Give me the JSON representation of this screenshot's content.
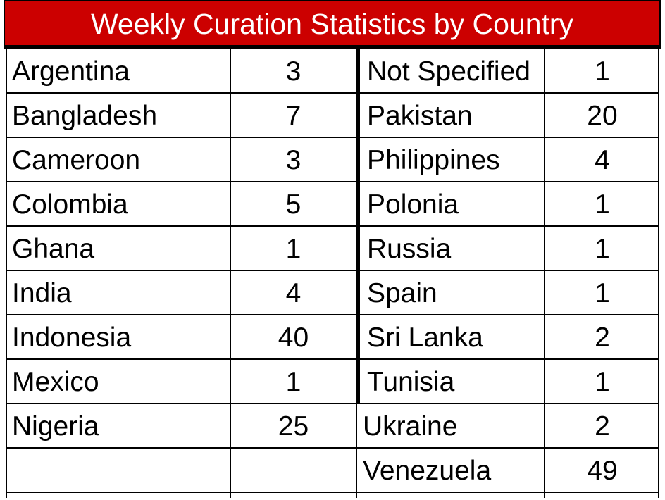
{
  "title": "Weekly Curation Statistics by Country",
  "colors": {
    "header_bg": "#cc0000",
    "header_text": "#ffffff",
    "border": "#000000"
  },
  "left_table": [
    {
      "country": "Argentina",
      "count": "3"
    },
    {
      "country": "Bangladesh",
      "count": "7"
    },
    {
      "country": "Cameroon",
      "count": "3"
    },
    {
      "country": "Colombia",
      "count": "5"
    },
    {
      "country": "Ghana",
      "count": "1"
    },
    {
      "country": "India",
      "count": "4"
    },
    {
      "country": "Indonesia",
      "count": "40"
    },
    {
      "country": "Mexico",
      "count": "1"
    },
    {
      "country": "Nigeria",
      "count": "25"
    },
    {
      "country": "",
      "count": ""
    }
  ],
  "right_table": [
    {
      "country": "Not Specified",
      "count": "1"
    },
    {
      "country": "Pakistan",
      "count": "20"
    },
    {
      "country": "Philippines",
      "count": "4"
    },
    {
      "country": "Polonia",
      "count": "1"
    },
    {
      "country": "Russia",
      "count": "1"
    },
    {
      "country": "Spain",
      "count": "1"
    },
    {
      "country": "Sri Lanka",
      "count": "2"
    },
    {
      "country": "Tunisia",
      "count": "1"
    },
    {
      "country": "Ukraine",
      "count": "2"
    },
    {
      "country": "Venezuela",
      "count": "49"
    }
  ]
}
